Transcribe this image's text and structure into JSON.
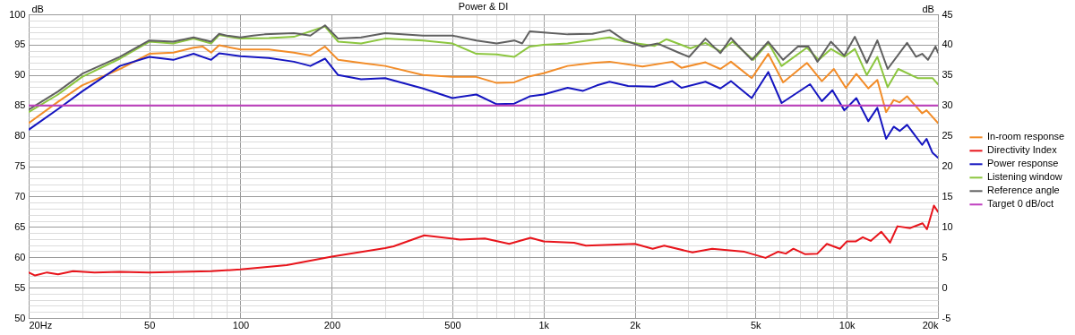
{
  "chart_data": {
    "type": "line",
    "title": "Power & DI",
    "ylabel": "dB",
    "y2label": "dB",
    "log": "x",
    "grid": true,
    "legend": "right",
    "line_style": "solid",
    "xlim": [
      20,
      20000
    ],
    "ylim": [
      50,
      100
    ],
    "y2lim": [
      -5,
      45
    ],
    "xticks": [
      {
        "value": 20,
        "label": "20Hz"
      },
      {
        "value": 30,
        "label": null
      },
      {
        "value": 40,
        "label": null
      },
      50,
      {
        "value": 60,
        "label": null
      },
      {
        "value": 70,
        "label": null
      },
      {
        "value": 80,
        "label": null
      },
      {
        "value": 90,
        "label": null
      },
      100,
      200,
      {
        "value": 300,
        "label": null
      },
      {
        "value": 400,
        "label": null
      },
      500,
      {
        "value": 600,
        "label": null
      },
      {
        "value": 700,
        "label": null
      },
      {
        "value": 800,
        "label": null
      },
      {
        "value": 900,
        "label": null
      },
      {
        "value": 1000,
        "label": "1k"
      },
      {
        "value": 2000,
        "label": "2k"
      },
      {
        "value": 3000,
        "label": null
      },
      {
        "value": 4000,
        "label": null
      },
      {
        "value": 5000,
        "label": "5k"
      },
      {
        "value": 6000,
        "label": null
      },
      {
        "value": 7000,
        "label": null
      },
      {
        "value": 8000,
        "label": null
      },
      {
        "value": 9000,
        "label": null
      },
      {
        "value": 10000,
        "label": "10k"
      },
      {
        "value": 20000,
        "label": "20k"
      }
    ],
    "yticks": [
      50,
      {
        "value": 51,
        "label": null
      },
      {
        "value": 52,
        "label": null
      },
      {
        "value": 53,
        "label": null
      },
      {
        "value": 54,
        "label": null
      },
      55,
      {
        "value": 56,
        "label": null
      },
      {
        "value": 57,
        "label": null
      },
      {
        "value": 58,
        "label": null
      },
      {
        "value": 59,
        "label": null
      },
      60,
      {
        "value": 61,
        "label": null
      },
      {
        "value": 62,
        "label": null
      },
      {
        "value": 63,
        "label": null
      },
      {
        "value": 64,
        "label": null
      },
      65,
      {
        "value": 66,
        "label": null
      },
      {
        "value": 67,
        "label": null
      },
      {
        "value": 68,
        "label": null
      },
      {
        "value": 69,
        "label": null
      },
      70,
      {
        "value": 71,
        "label": null
      },
      {
        "value": 72,
        "label": null
      },
      {
        "value": 73,
        "label": null
      },
      {
        "value": 74,
        "label": null
      },
      75,
      {
        "value": 76,
        "label": null
      },
      {
        "value": 77,
        "label": null
      },
      {
        "value": 78,
        "label": null
      },
      {
        "value": 79,
        "label": null
      },
      80,
      {
        "value": 81,
        "label": null
      },
      {
        "value": 82,
        "label": null
      },
      {
        "value": 83,
        "label": null
      },
      {
        "value": 84,
        "label": null
      },
      85,
      {
        "value": 86,
        "label": null
      },
      {
        "value": 87,
        "label": null
      },
      {
        "value": 88,
        "label": null
      },
      {
        "value": 89,
        "label": null
      },
      90,
      {
        "value": 91,
        "label": null
      },
      {
        "value": 92,
        "label": null
      },
      {
        "value": 93,
        "label": null
      },
      {
        "value": 94,
        "label": null
      },
      95,
      {
        "value": 96,
        "label": null
      },
      {
        "value": 97,
        "label": null
      },
      {
        "value": 98,
        "label": null
      },
      {
        "value": 99,
        "label": null
      },
      100
    ],
    "y2ticks": [
      -5,
      0,
      5,
      10,
      15,
      20,
      25,
      30,
      35,
      40,
      45
    ],
    "series": [
      {
        "name": "In-room response",
        "color": "#f28c28",
        "x": [
          20,
          25,
          30,
          40,
          50,
          60,
          70,
          75,
          80,
          85,
          100,
          124,
          150,
          170,
          190,
          210,
          250,
          300,
          400,
          500,
          600,
          700,
          800,
          900,
          1000,
          1200,
          1450,
          1650,
          2120,
          2660,
          2850,
          3420,
          3830,
          4150,
          4860,
          5510,
          6170,
          7390,
          8280,
          9070,
          9930,
          10760,
          11780,
          12620,
          13490,
          14290,
          14960,
          15820,
          17740,
          18340,
          20000
        ],
        "values": [
          82.1,
          85.6,
          88.3,
          91,
          93.5,
          93.7,
          94.5,
          94.7,
          93.7,
          94.9,
          94.2,
          94.2,
          93.7,
          93.2,
          94.7,
          92.5,
          92,
          91.5,
          90,
          89.7,
          89.7,
          88.7,
          88.8,
          89.8,
          90.3,
          91.5,
          92,
          92.2,
          91.4,
          92.2,
          91.2,
          92.1,
          91,
          92.2,
          89.5,
          93.5,
          88.8,
          92,
          89,
          91,
          87.9,
          90.2,
          87.8,
          89.2,
          83.9,
          85.9,
          85.5,
          86.5,
          83.7,
          84.2,
          82.1
        ]
      },
      {
        "name": "Directivity Index",
        "color": "#e8141b",
        "axis": "y2",
        "x": [
          20,
          21,
          23,
          25,
          28,
          33,
          40,
          50,
          80,
          100,
          142,
          200,
          300,
          320,
          404,
          530,
          640,
          770,
          905,
          1000,
          1260,
          1380,
          2000,
          2290,
          2500,
          3100,
          3600,
          4600,
          5400,
          5930,
          6300,
          6670,
          7300,
          8000,
          8600,
          9500,
          10000,
          10700,
          11300,
          12000,
          13000,
          13900,
          14700,
          16200,
          17800,
          18400,
          19400,
          20000
        ],
        "values": [
          2.5,
          2,
          2.5,
          2.2,
          2.7,
          2.5,
          2.6,
          2.5,
          2.7,
          3,
          3.7,
          5.1,
          6.5,
          6.8,
          8.6,
          7.9,
          8.1,
          7.2,
          8.2,
          7.6,
          7.4,
          6.9,
          7.2,
          6.4,
          6.9,
          5.8,
          6.4,
          5.9,
          4.9,
          5.9,
          5.6,
          6.4,
          5.5,
          5.6,
          7.2,
          6.4,
          7.6,
          7.6,
          8.3,
          7.7,
          9.2,
          7.4,
          10.1,
          9.8,
          10.6,
          9.6,
          13.5,
          12.5
        ]
      },
      {
        "name": "Power response",
        "color": "#1515c0",
        "x": [
          20,
          25,
          30,
          40,
          50,
          60,
          70,
          80,
          85,
          100,
          124,
          150,
          170,
          190,
          210,
          250,
          300,
          400,
          500,
          600,
          700,
          800,
          900,
          1000,
          1200,
          1350,
          1500,
          1650,
          1900,
          2320,
          2660,
          2850,
          3420,
          3830,
          4150,
          4860,
          5510,
          6100,
          7570,
          8280,
          8970,
          9820,
          10760,
          11780,
          12620,
          13490,
          14290,
          14960,
          15820,
          17740,
          18340,
          19190,
          20000
        ],
        "values": [
          81,
          84.4,
          87.3,
          91.5,
          93,
          92.5,
          93.5,
          92.5,
          93.6,
          93.1,
          92.8,
          92.2,
          91.5,
          92.7,
          90,
          89.3,
          89.5,
          87.8,
          86.2,
          86.8,
          85.2,
          85.3,
          86.5,
          86.8,
          87.9,
          87.4,
          88.3,
          88.9,
          88.2,
          88.1,
          89,
          87.9,
          88.9,
          87.8,
          89,
          86.2,
          90.5,
          85.4,
          88.5,
          85.7,
          87.5,
          84.2,
          86.2,
          82.4,
          84.6,
          79.5,
          81.5,
          80.8,
          81.8,
          78.5,
          79.5,
          77.2,
          76.4
        ]
      },
      {
        "name": "Listening window",
        "color": "#8cc63f",
        "x": [
          20,
          25,
          30,
          40,
          50,
          60,
          70,
          80,
          85,
          100,
          124,
          150,
          190,
          210,
          250,
          300,
          400,
          500,
          600,
          700,
          800,
          900,
          1000,
          1200,
          1450,
          1650,
          1850,
          2320,
          2540,
          3050,
          3420,
          3830,
          4200,
          4920,
          5510,
          6100,
          7390,
          8090,
          8870,
          9820,
          10640,
          11650,
          12620,
          13650,
          14790,
          17140,
          19190,
          20000
        ],
        "values": [
          83.9,
          86.8,
          89.7,
          92.7,
          95.5,
          95.2,
          96,
          95.2,
          96.6,
          96,
          96.1,
          96.3,
          98,
          95.5,
          95.2,
          96,
          95.7,
          95.2,
          93.5,
          93.4,
          93,
          94.7,
          95,
          95.2,
          95.8,
          96.2,
          95.5,
          94.8,
          95.9,
          94.4,
          95.3,
          93.9,
          95.5,
          92.5,
          95.3,
          91.5,
          94.5,
          92.5,
          94.3,
          93,
          94.3,
          90,
          93,
          88,
          91,
          89.5,
          89.5,
          88.5
        ]
      },
      {
        "name": "Reference angle",
        "color": "#606060",
        "x": [
          20,
          25,
          30,
          40,
          50,
          60,
          70,
          80,
          85,
          90,
          100,
          110,
          120,
          150,
          170,
          190,
          210,
          250,
          300,
          400,
          500,
          600,
          700,
          800,
          850,
          900,
          1000,
          1200,
          1450,
          1650,
          1850,
          2120,
          2380,
          2790,
          3020,
          3420,
          3830,
          4150,
          4860,
          5510,
          6170,
          6900,
          7480,
          8010,
          8870,
          9820,
          10640,
          11650,
          12620,
          13650,
          15820,
          16940,
          17740,
          18550,
          19630,
          20000
        ],
        "values": [
          84.3,
          87.3,
          90.2,
          93,
          95.7,
          95.5,
          96.2,
          95.5,
          96.8,
          96.5,
          96.2,
          96.5,
          96.7,
          96.9,
          96.5,
          98.2,
          96,
          96.2,
          96.9,
          96.5,
          96.5,
          95.7,
          95.2,
          95.7,
          95.2,
          97.2,
          97,
          96.7,
          96.8,
          97.4,
          95.7,
          94.7,
          95.2,
          93.7,
          93,
          96,
          93.6,
          96.1,
          92.5,
          95.5,
          92.5,
          94.7,
          94.7,
          92.2,
          95.5,
          93.2,
          96.3,
          92,
          95.7,
          91,
          95.3,
          93,
          93.5,
          92.5,
          94.7,
          93.7
        ]
      },
      {
        "name": "Target 0 dB/oct",
        "color": "#c040c0",
        "x": [
          20,
          20000
        ],
        "values": [
          85,
          85
        ]
      }
    ]
  }
}
